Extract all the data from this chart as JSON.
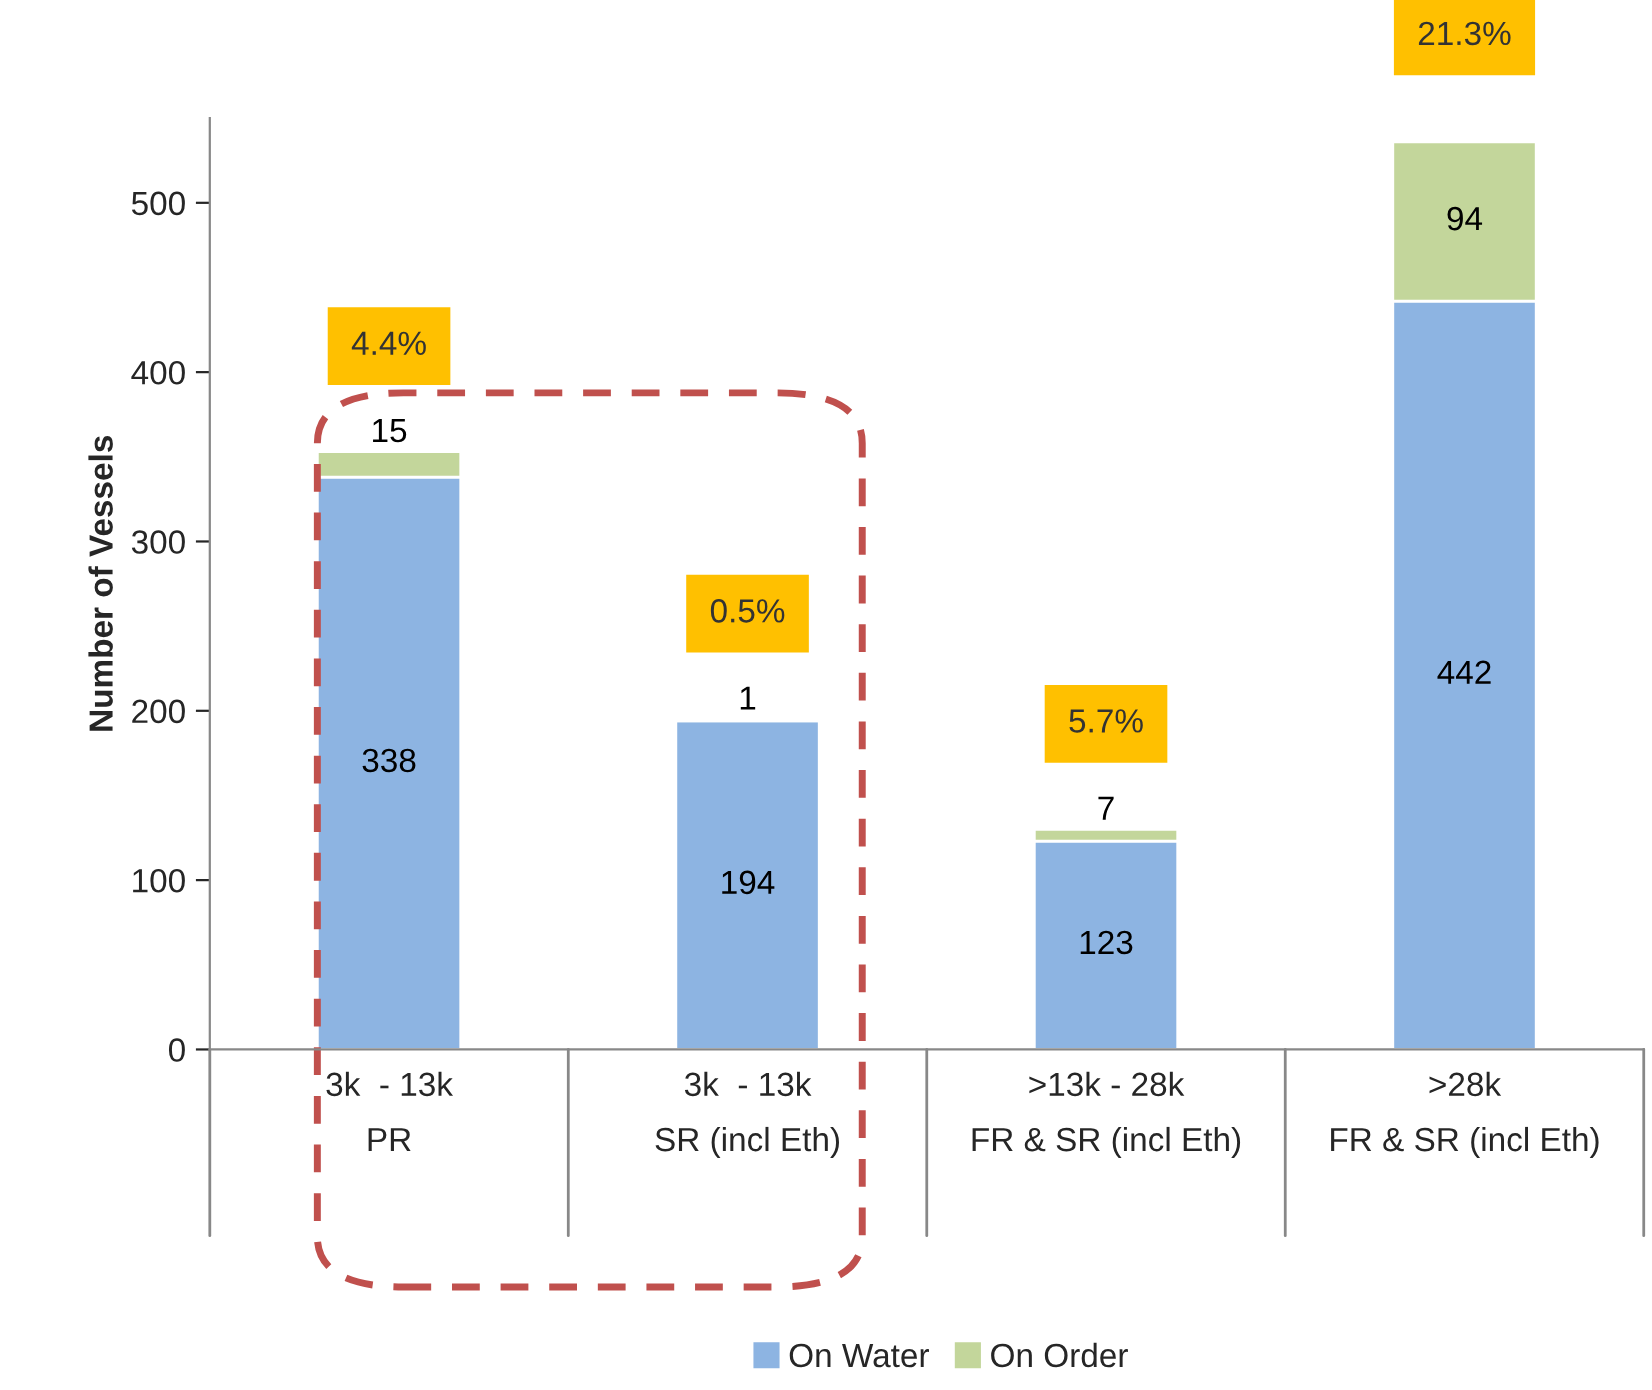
{
  "chart_data": {
    "type": "bar",
    "stacked": true,
    "ylabel": "Number of Vessels",
    "categories": [
      "3k  - 13k\nPR",
      "3k  - 13k\nSR (incl Eth)",
      ">13k - 28k\nFR & SR (incl Eth)",
      ">28k\nFR & SR (incl Eth)"
    ],
    "series": [
      {
        "name": "On Water",
        "color": "#8db4e2",
        "values": [
          338,
          194,
          123,
          442
        ]
      },
      {
        "name": "On Order",
        "color": "#c3d69b",
        "values": [
          15,
          1,
          7,
          94
        ]
      }
    ],
    "data_labels": true,
    "ylim": [
      0,
      550
    ],
    "yticks": [
      0,
      100,
      200,
      300,
      400,
      500
    ],
    "grid": false,
    "legend": "bottom",
    "annotations": [
      "4.4%",
      "0.5%",
      "5.7%",
      "21.3%"
    ]
  }
}
